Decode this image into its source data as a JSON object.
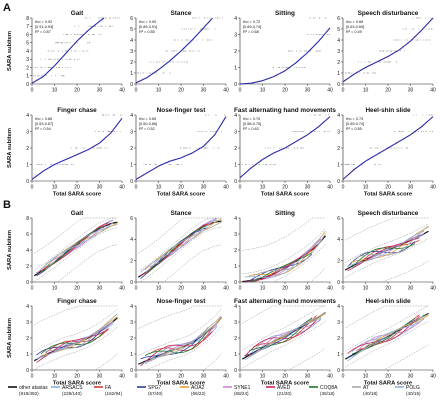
{
  "figure": {
    "panel_labels": [
      "A",
      "B"
    ],
    "x_ticks": [
      "0",
      "10",
      "20",
      "30",
      "40"
    ]
  },
  "colors": {
    "fit_blue": "#2a2aa8",
    "points": "#9a9a9a",
    "band": "#8a8a8a"
  },
  "chart_data": [
    {
      "type": "scatter",
      "panel": "A",
      "xlabel": "Total SARA score",
      "ylabel": "SARA subitem",
      "xlim": [
        0,
        40
      ],
      "subplots": [
        {
          "title": "Gait",
          "ylim": [
            0,
            8
          ],
          "y_ticks": [
            "0",
            "1",
            "2",
            "3",
            "4",
            "5",
            "6",
            "7",
            "8"
          ],
          "stats": [
            "rho = 0.92",
            "[0.91-0.93]",
            "R² = 0.87"
          ],
          "fit": {
            "x": [
              0,
              5,
              10,
              15,
              20,
              25,
              30,
              32
            ],
            "y": [
              0.1,
              0.9,
              2.2,
              3.7,
              5.2,
              6.5,
              7.6,
              8.0
            ]
          }
        },
        {
          "title": "Stance",
          "ylim": [
            0,
            6
          ],
          "y_ticks": [
            "0",
            "1",
            "2",
            "3",
            "4",
            "5",
            "6"
          ],
          "stats": [
            "rho = 0.90",
            "[0.89-0.91]",
            "R² = 0.85"
          ],
          "fit": {
            "x": [
              0,
              5,
              10,
              15,
              20,
              25,
              30,
              34
            ],
            "y": [
              0.1,
              0.6,
              1.3,
              2.1,
              3.0,
              4.0,
              5.1,
              6.0
            ]
          }
        },
        {
          "title": "Sitting",
          "ylim": [
            0,
            4
          ],
          "y_ticks": [
            "0",
            "1",
            "2",
            "3",
            "4"
          ],
          "stats": [
            "rho = 0.72",
            "[0.69-0.74]",
            "R² = 0.68"
          ],
          "fit": {
            "x": [
              0,
              5,
              10,
              15,
              20,
              25,
              30,
              35,
              40
            ],
            "y": [
              0.0,
              0.05,
              0.2,
              0.45,
              0.8,
              1.3,
              1.9,
              2.6,
              3.4
            ]
          }
        },
        {
          "title": "Speech disturbance",
          "ylim": [
            0,
            6
          ],
          "y_ticks": [
            "0",
            "1",
            "2",
            "3",
            "4",
            "5",
            "6"
          ],
          "stats": [
            "rho = 0.66",
            "[0.63-0.69]",
            "R² = 0.49"
          ],
          "fit": {
            "x": [
              0,
              5,
              10,
              15,
              20,
              25,
              30,
              35,
              40
            ],
            "y": [
              0.2,
              0.9,
              1.5,
              2.0,
              2.5,
              3.1,
              3.9,
              4.9,
              6.0
            ]
          }
        },
        {
          "title": "Finger chase",
          "ylim": [
            0,
            4
          ],
          "y_ticks": [
            "0",
            "1",
            "2",
            "3",
            "4"
          ],
          "stats": [
            "rho = 0.66",
            "[0.63-0.67]",
            "R² = 0.54"
          ],
          "fit": {
            "x": [
              0,
              5,
              10,
              15,
              20,
              25,
              30,
              35,
              40
            ],
            "y": [
              0.1,
              0.6,
              1.0,
              1.3,
              1.6,
              1.9,
              2.3,
              2.9,
              3.8
            ]
          }
        },
        {
          "title": "Nose-finger test",
          "ylim": [
            0,
            4
          ],
          "y_ticks": [
            "0",
            "1",
            "2",
            "3",
            "4"
          ],
          "stats": [
            "rho = 0.65",
            "[0.60-0.66]",
            "R² = 0.52"
          ],
          "fit": {
            "x": [
              0,
              5,
              10,
              15,
              20,
              25,
              30,
              35,
              40
            ],
            "y": [
              0.1,
              0.5,
              0.9,
              1.2,
              1.4,
              1.7,
              2.1,
              2.8,
              3.9
            ]
          }
        },
        {
          "title": "Fast alternating hand movements",
          "ylim": [
            0,
            4
          ],
          "y_ticks": [
            "0",
            "1",
            "2",
            "3",
            "4"
          ],
          "stats": [
            "rho = 0.70",
            "[0.68-0.75]",
            "R² = 0.63"
          ],
          "fit": {
            "x": [
              0,
              5,
              10,
              15,
              20,
              25,
              30,
              35,
              40
            ],
            "y": [
              0.2,
              0.8,
              1.3,
              1.7,
              2.0,
              2.4,
              2.8,
              3.3,
              3.9
            ]
          }
        },
        {
          "title": "Heel-shin slide",
          "ylim": [
            0,
            4
          ],
          "y_ticks": [
            "0",
            "1",
            "2",
            "3",
            "4"
          ],
          "stats": [
            "rho = 0.73",
            "[0.69-0.74]",
            "R² = 0.55"
          ],
          "fit": {
            "x": [
              0,
              5,
              10,
              15,
              20,
              25,
              30,
              35,
              40
            ],
            "y": [
              0.1,
              0.7,
              1.2,
              1.6,
              2.0,
              2.4,
              2.8,
              3.3,
              3.9
            ]
          }
        }
      ]
    },
    {
      "type": "line",
      "panel": "B",
      "xlabel": "Total SARA score",
      "ylabel": "SARA subitem",
      "xlim": [
        0,
        40
      ],
      "legend_placement": "bottom",
      "series": [
        {
          "name": "other ataxias",
          "n": "(918/492)",
          "color": "#111111"
        },
        {
          "name": "ARSACS",
          "n": "(229/140)",
          "color": "#7fb3e0"
        },
        {
          "name": "FA",
          "n": "(162/94)",
          "color": "#d63a3a"
        },
        {
          "name": "SPG7",
          "n": "(57/40)",
          "color": "#2a3f9c"
        },
        {
          "name": "AOA2",
          "n": "(65/22)",
          "color": "#e8a23a"
        },
        {
          "name": "SYNE1",
          "n": "(68/24)",
          "color": "#d080d0"
        },
        {
          "name": "AVED",
          "n": "(21/20)",
          "color": "#d02050"
        },
        {
          "name": "COQ8A",
          "n": "(36/18)",
          "color": "#1e7a2a"
        },
        {
          "name": "AT",
          "n": "(40/18)",
          "color": "#a8a8a8"
        },
        {
          "name": "POLG",
          "n": "(40/15)",
          "color": "#8fb0d8"
        }
      ],
      "subplots": [
        {
          "title": "Gait",
          "ylim": [
            0,
            8
          ],
          "y_ticks": [
            "0",
            "2",
            "4",
            "6",
            "8"
          ],
          "xmax": 38,
          "base": [
            0.6,
            1.5,
            2.5,
            3.6,
            4.7,
            5.8,
            6.7,
            7.3,
            7.6
          ],
          "amp": 0.55,
          "band": 1.0
        },
        {
          "title": "Stance",
          "ylim": [
            0,
            6
          ],
          "y_ticks": [
            "0",
            "2",
            "4",
            "6"
          ],
          "xmax": 38,
          "base": [
            0.3,
            1.0,
            1.8,
            2.7,
            3.6,
            4.5,
            5.2,
            5.6,
            5.8
          ],
          "amp": 0.45,
          "band": 0.8
        },
        {
          "title": "Sitting",
          "ylim": [
            0,
            4
          ],
          "y_ticks": [
            "0",
            "1",
            "2",
            "3",
            "4"
          ],
          "xmax": 38,
          "base": [
            0.0,
            0.1,
            0.25,
            0.5,
            0.85,
            1.3,
            1.8,
            2.4,
            3.2
          ],
          "amp": 0.35,
          "band": 0.7
        },
        {
          "title": "Speech disturbance",
          "ylim": [
            0,
            6
          ],
          "y_ticks": [
            "0",
            "2",
            "4",
            "6"
          ],
          "xmax": 38,
          "base": [
            1.0,
            1.6,
            2.1,
            2.6,
            3.0,
            3.4,
            3.9,
            4.4,
            5.0
          ],
          "amp": 0.6,
          "band": 1.0
        },
        {
          "title": "Finger chase",
          "ylim": [
            0,
            4
          ],
          "y_ticks": [
            "0",
            "1",
            "2",
            "3",
            "4"
          ],
          "xmax": 38,
          "base": [
            0.5,
            0.9,
            1.2,
            1.5,
            1.7,
            2.0,
            2.4,
            2.9,
            3.5
          ],
          "amp": 0.35,
          "band": 0.8
        },
        {
          "title": "Nose-finger test",
          "ylim": [
            0,
            4
          ],
          "y_ticks": [
            "0",
            "1",
            "2",
            "3",
            "4"
          ],
          "xmax": 38,
          "base": [
            0.3,
            0.6,
            0.9,
            1.2,
            1.4,
            1.7,
            2.2,
            2.8,
            3.6
          ],
          "amp": 0.4,
          "band": 0.8
        },
        {
          "title": "Fast alternating hand movements",
          "ylim": [
            0,
            4
          ],
          "y_ticks": [
            "0",
            "1",
            "2",
            "3",
            "4"
          ],
          "xmax": 38,
          "base": [
            0.6,
            1.0,
            1.4,
            1.8,
            2.1,
            2.5,
            2.9,
            3.3,
            3.8
          ],
          "amp": 0.4,
          "band": 0.8
        },
        {
          "title": "Heel-shin slide",
          "ylim": [
            0,
            4
          ],
          "y_ticks": [
            "0",
            "1",
            "2",
            "3",
            "4"
          ],
          "xmax": 38,
          "base": [
            0.6,
            1.0,
            1.4,
            1.8,
            2.1,
            2.5,
            2.9,
            3.3,
            3.7
          ],
          "amp": 0.35,
          "band": 0.7
        }
      ]
    }
  ]
}
